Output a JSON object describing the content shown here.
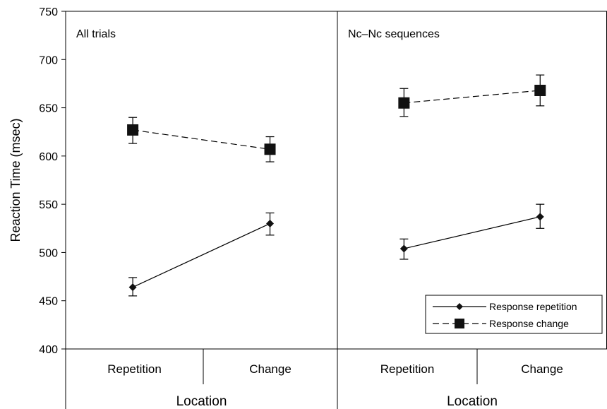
{
  "chart_data": {
    "type": "line",
    "ylabel": "Reaction Time (msec)",
    "ylim": [
      400,
      750
    ],
    "yticks": [
      400,
      450,
      500,
      550,
      600,
      650,
      700,
      750
    ],
    "categories": [
      "Repetition",
      "Change"
    ],
    "xlabel": "Location",
    "grid": false,
    "legend_position": "bottom-right of right panel",
    "panels": [
      {
        "title": "All trials",
        "series": [
          {
            "name": "Response repetition",
            "marker": "diamond",
            "line": "solid",
            "values": [
              464,
              530
            ],
            "error_low": [
              455,
              518
            ],
            "error_high": [
              474,
              541
            ]
          },
          {
            "name": "Response change",
            "marker": "square",
            "line": "dashed",
            "values": [
              627,
              607
            ],
            "error_low": [
              613,
              594
            ],
            "error_high": [
              640,
              620
            ]
          }
        ]
      },
      {
        "title": "Nc–Nc sequences",
        "series": [
          {
            "name": "Response repetition",
            "marker": "diamond",
            "line": "solid",
            "values": [
              504,
              537
            ],
            "error_low": [
              493,
              525
            ],
            "error_high": [
              514,
              550
            ]
          },
          {
            "name": "Response change",
            "marker": "square",
            "line": "dashed",
            "values": [
              655,
              668
            ],
            "error_low": [
              641,
              652
            ],
            "error_high": [
              670,
              684
            ]
          }
        ]
      }
    ],
    "legend": [
      {
        "name": "Response repetition",
        "marker": "diamond",
        "line": "solid"
      },
      {
        "name": "Response change",
        "marker": "square",
        "line": "dashed"
      }
    ]
  }
}
